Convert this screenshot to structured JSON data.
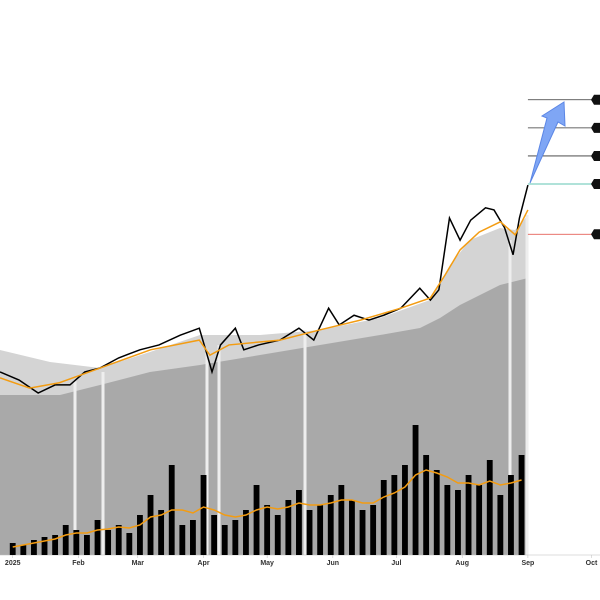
{
  "chart_data": [
    {
      "type": "line",
      "x": [
        -6,
        3,
        12,
        20,
        27,
        34,
        41,
        50,
        60,
        69,
        79,
        88,
        91,
        94,
        98,
        105,
        109,
        116,
        126,
        135,
        142,
        149,
        154,
        161,
        168,
        175,
        183,
        192,
        197,
        201,
        206,
        211,
        216,
        223,
        227,
        232,
        236,
        239,
        243
      ],
      "series": [
        {
          "color": "#000000",
          "values": [
            33.9,
            32.4,
            30,
            31.5,
            31.5,
            33.9,
            34.6,
            36.5,
            38,
            38.9,
            40.7,
            42,
            38,
            33.9,
            38.9,
            42,
            38,
            38.9,
            39.8,
            42,
            39.8,
            45.7,
            42.6,
            44.4,
            43.5,
            44.4,
            45.7,
            49.4,
            47.2,
            49.1,
            62.4,
            58.3,
            62,
            64.3,
            63.9,
            60.6,
            55.6,
            62.4,
            68.5
          ]
        },
        {
          "color": "#f39c12",
          "values": [
            32.8,
            30.9,
            31.9,
            34.6,
            38,
            39.8,
            37,
            38.9,
            39.8,
            41.7,
            43.5,
            45.7,
            47.6,
            51.9,
            56.5,
            59.8,
            61.7,
            59.3,
            63.9
          ],
          "x": [
            -6,
            8,
            22,
            41,
            65,
            88,
            93,
            102,
            126,
            145,
            164,
            183,
            197,
            204,
            211,
            220,
            230,
            237,
            243
          ]
        }
      ],
      "xlim": [
        -6,
        277
      ],
      "ylim": [
        0,
        100
      ],
      "xticks": [
        {
          "value": 0,
          "label": "2025"
        },
        {
          "value": 31,
          "label": "Feb"
        },
        {
          "value": 59,
          "label": "Mar"
        },
        {
          "value": 90,
          "label": "Apr"
        },
        {
          "value": 120,
          "label": "May"
        },
        {
          "value": 151,
          "label": "Jun"
        },
        {
          "value": 181,
          "label": "Jul"
        },
        {
          "value": 212,
          "label": "Aug"
        },
        {
          "value": 243,
          "label": "Sep"
        },
        {
          "value": 273,
          "label": "Oct"
        }
      ],
      "levels": [
        {
          "value": 84.3,
          "color": "#333333"
        },
        {
          "value": 79.1,
          "color": "#333333"
        },
        {
          "value": 73.9,
          "color": "#333333"
        },
        {
          "value": 68.7,
          "color": "#2bb39a"
        },
        {
          "value": 59.4,
          "color": "#e0453a"
        }
      ]
    },
    {
      "type": "bar",
      "x": [
        0,
        5,
        10,
        15,
        20,
        25,
        30,
        35,
        40,
        45,
        50,
        55,
        60,
        65,
        70,
        75,
        80,
        85,
        90,
        95,
        100,
        105,
        110,
        115,
        120,
        125,
        130,
        135,
        140,
        145,
        150,
        155,
        160,
        165,
        170,
        175,
        180,
        185,
        190,
        195,
        200,
        205,
        210,
        215,
        220,
        225,
        230,
        235,
        240
      ],
      "series": [
        {
          "kind": "bar",
          "color": "#000000",
          "values": [
            12,
            10,
            15,
            18,
            20,
            30,
            25,
            20,
            35,
            25,
            30,
            22,
            40,
            60,
            45,
            90,
            30,
            35,
            80,
            40,
            30,
            35,
            45,
            70,
            50,
            40,
            55,
            65,
            45,
            50,
            60,
            70,
            55,
            45,
            50,
            75,
            80,
            90,
            130,
            100,
            85,
            70,
            65,
            80,
            70,
            95,
            60,
            80,
            100
          ]
        },
        {
          "kind": "line",
          "color": "#f39c12",
          "values": [
            8,
            10,
            12,
            14,
            16,
            20,
            22,
            22,
            25,
            26,
            28,
            27,
            30,
            38,
            40,
            45,
            45,
            42,
            48,
            45,
            40,
            38,
            40,
            45,
            48,
            46,
            48,
            52,
            50,
            50,
            52,
            55,
            55,
            52,
            52,
            58,
            62,
            68,
            80,
            85,
            82,
            78,
            72,
            72,
            70,
            74,
            70,
            72,
            75
          ]
        }
      ],
      "xlim": [
        -6,
        277
      ],
      "ylim": [
        0,
        540
      ]
    }
  ]
}
